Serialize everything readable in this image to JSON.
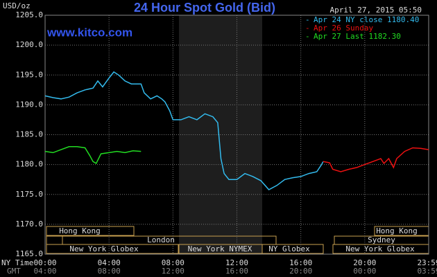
{
  "chart_data": {
    "type": "line",
    "title": "24 Hour Spot Gold (Bid)",
    "y_label": "USD/oz",
    "watermark": "www.kitco.com",
    "timestamp": "April 27, 2015 05:50",
    "x_row_label": "NY Time",
    "x2_row_label": "GMT",
    "grid": true,
    "legend": "top-right",
    "xlim": [
      0,
      24
    ],
    "xticks": [
      {
        "value": 0,
        "label": "00:00"
      },
      {
        "value": 4,
        "label": "04:00"
      },
      {
        "value": 8,
        "label": "08:00"
      },
      {
        "value": 12,
        "label": "12:00"
      },
      {
        "value": 16,
        "label": "16:00"
      },
      {
        "value": 20,
        "label": "20:00"
      },
      {
        "value": 24,
        "label": "23:59"
      }
    ],
    "x2ticks": [
      "04:00",
      "08:00",
      "12:00",
      "16:00",
      "20:00",
      "00:00",
      "03:59"
    ],
    "ylim": [
      1165,
      1205
    ],
    "yticks": [
      {
        "value": 1165,
        "label": "1165.0"
      },
      {
        "value": 1170,
        "label": "1170.0"
      },
      {
        "value": 1175,
        "label": "1175.0"
      },
      {
        "value": 1180,
        "label": "1180.0"
      },
      {
        "value": 1185,
        "label": "1185.0"
      },
      {
        "value": 1190,
        "label": "1190.0"
      },
      {
        "value": 1195,
        "label": "1195.0"
      },
      {
        "value": 1200,
        "label": "1200.0"
      },
      {
        "value": 1205,
        "label": "1205.0"
      }
    ],
    "sessions": [
      "Hong Kong",
      "London",
      "New York Globex",
      "New York NYMEX",
      "NY Globex",
      "Sydney",
      "Hong Kong",
      "New York Globex"
    ],
    "series": [
      {
        "name": "Apr 24 NY close 1180.40",
        "color": "#33bbee",
        "x": [
          0,
          0.5,
          1,
          1.5,
          2,
          2.5,
          3,
          3.3,
          3.6,
          4,
          4.3,
          4.6,
          5,
          5.4,
          6,
          6.2,
          6.6,
          7,
          7.3,
          7.5,
          7.8,
          8,
          8.5,
          9,
          9.5,
          10,
          10.5,
          10.8,
          11,
          11.2,
          11.5,
          12,
          12.5,
          13,
          13.5,
          14,
          14.5,
          15,
          15.5,
          16,
          16.5,
          17,
          17.3,
          17.4
        ],
        "values": [
          1191.5,
          1191.2,
          1191.0,
          1191.3,
          1192.0,
          1192.5,
          1192.8,
          1194.0,
          1193.0,
          1194.5,
          1195.5,
          1195.0,
          1194.0,
          1193.5,
          1193.5,
          1192.0,
          1191.0,
          1191.5,
          1191.0,
          1190.5,
          1189.0,
          1187.5,
          1187.5,
          1188.0,
          1187.5,
          1188.5,
          1188.0,
          1187.0,
          1181.0,
          1178.5,
          1177.5,
          1177.5,
          1178.5,
          1178.0,
          1177.3,
          1175.8,
          1176.5,
          1177.5,
          1177.8,
          1178.0,
          1178.5,
          1178.8,
          1180.0,
          1180.5
        ]
      },
      {
        "name": "Apr 26 Sunday",
        "color": "#ee1111",
        "x": [
          17.4,
          17.8,
          18,
          18.5,
          19,
          19.5,
          20,
          20.5,
          21,
          21.2,
          21.5,
          21.8,
          22,
          22.5,
          23,
          23.5,
          24
        ],
        "values": [
          1180.5,
          1180.3,
          1179.2,
          1178.8,
          1179.2,
          1179.5,
          1180.0,
          1180.5,
          1181.0,
          1180.2,
          1181.0,
          1179.5,
          1181.0,
          1182.2,
          1182.8,
          1182.7,
          1182.5
        ]
      },
      {
        "name": "Apr 27 Last 1182.30",
        "color": "#22dd22",
        "x": [
          0,
          0.5,
          1,
          1.5,
          2,
          2.5,
          2.8,
          3,
          3.2,
          3.5,
          4,
          4.5,
          5,
          5.5,
          6
        ],
        "values": [
          1182.2,
          1182.0,
          1182.5,
          1183.0,
          1183.0,
          1182.8,
          1181.5,
          1180.5,
          1180.2,
          1181.8,
          1182.0,
          1182.2,
          1182.0,
          1182.3,
          1182.2
        ]
      }
    ]
  }
}
